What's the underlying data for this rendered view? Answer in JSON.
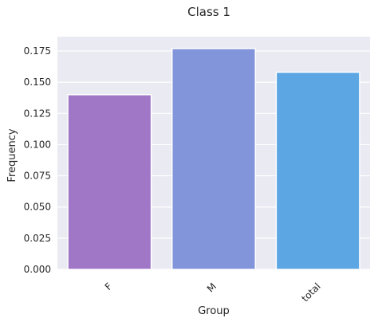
{
  "chart_data": {
    "type": "bar",
    "title": "Class 1",
    "xlabel": "Group",
    "ylabel": "Frequency",
    "categories": [
      "F",
      "M",
      "total"
    ],
    "values": [
      0.14,
      0.177,
      0.158
    ],
    "colors": [
      "#a076c6",
      "#8395da",
      "#5ba6e3"
    ],
    "ylim": [
      0,
      0.1865
    ],
    "yticks": [
      "0.000",
      "0.025",
      "0.050",
      "0.075",
      "0.100",
      "0.125",
      "0.150",
      "0.175"
    ],
    "grid": true,
    "background": "#eaeaf2"
  }
}
